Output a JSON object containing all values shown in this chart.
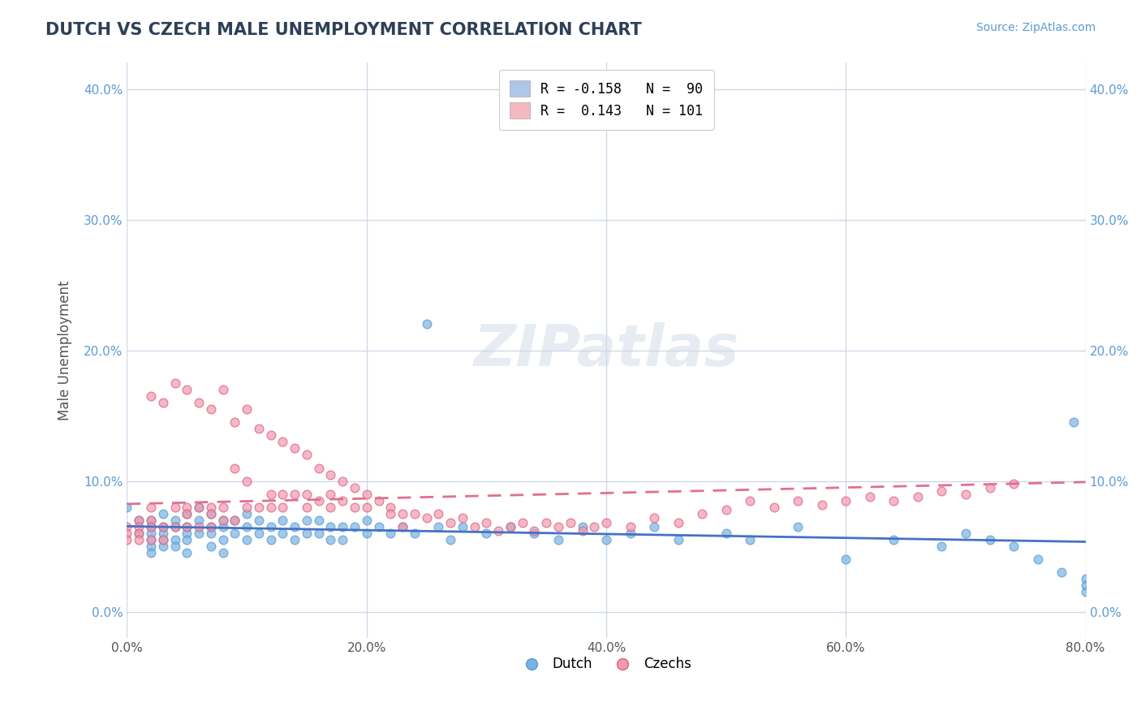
{
  "title": "DUTCH VS CZECH MALE UNEMPLOYMENT CORRELATION CHART",
  "source_text": "Source: ZipAtlas.com",
  "ylabel": "Male Unemployment",
  "xlabel": "",
  "xlim": [
    0.0,
    0.8
  ],
  "ylim": [
    -0.02,
    0.42
  ],
  "yticks": [
    0.0,
    0.1,
    0.2,
    0.3,
    0.4
  ],
  "ytick_labels": [
    "0.0%",
    "10.0%",
    "20.0%",
    "30.0%",
    "40.0%"
  ],
  "xticks": [
    0.0,
    0.2,
    0.4,
    0.6,
    0.8
  ],
  "xtick_labels": [
    "0.0%",
    "20.0%",
    "40.0%",
    "60.0%",
    "80.0%"
  ],
  "legend_entries": [
    {
      "label": "R = -0.158   N =  90",
      "color": "#aec6e8"
    },
    {
      "label": "R =  0.143   N = 101",
      "color": "#f4b8c1"
    }
  ],
  "dutch_color": "#5b9bd5",
  "czech_color": "#e06080",
  "dutch_scatter_color": "#7ab3e0",
  "czech_scatter_color": "#f09ab0",
  "dutch_line_color": "#4472c4",
  "czech_line_color": "#e07090",
  "title_color": "#2E4057",
  "source_color": "#5b9bd5",
  "grid_color": "#d0d8e8",
  "background_color": "#ffffff",
  "watermark": "ZIPatlas",
  "dutch_R": -0.158,
  "dutch_N": 90,
  "czech_R": 0.143,
  "czech_N": 101,
  "dutch_x": [
    0.0,
    0.01,
    0.01,
    0.02,
    0.02,
    0.02,
    0.02,
    0.02,
    0.02,
    0.03,
    0.03,
    0.03,
    0.03,
    0.03,
    0.04,
    0.04,
    0.04,
    0.04,
    0.05,
    0.05,
    0.05,
    0.05,
    0.05,
    0.06,
    0.06,
    0.06,
    0.07,
    0.07,
    0.07,
    0.07,
    0.08,
    0.08,
    0.08,
    0.08,
    0.09,
    0.09,
    0.1,
    0.1,
    0.1,
    0.11,
    0.11,
    0.12,
    0.12,
    0.13,
    0.13,
    0.14,
    0.14,
    0.15,
    0.15,
    0.16,
    0.16,
    0.17,
    0.17,
    0.18,
    0.18,
    0.19,
    0.2,
    0.2,
    0.21,
    0.22,
    0.23,
    0.24,
    0.25,
    0.26,
    0.27,
    0.28,
    0.3,
    0.32,
    0.34,
    0.36,
    0.38,
    0.4,
    0.42,
    0.44,
    0.46,
    0.5,
    0.52,
    0.56,
    0.6,
    0.64,
    0.68,
    0.7,
    0.72,
    0.74,
    0.76,
    0.78,
    0.79,
    0.8,
    0.8,
    0.8
  ],
  "dutch_y": [
    0.08,
    0.07,
    0.06,
    0.07,
    0.065,
    0.06,
    0.055,
    0.05,
    0.045,
    0.075,
    0.065,
    0.06,
    0.055,
    0.05,
    0.07,
    0.065,
    0.055,
    0.05,
    0.075,
    0.065,
    0.06,
    0.055,
    0.045,
    0.08,
    0.07,
    0.06,
    0.075,
    0.065,
    0.06,
    0.05,
    0.07,
    0.065,
    0.055,
    0.045,
    0.07,
    0.06,
    0.075,
    0.065,
    0.055,
    0.07,
    0.06,
    0.065,
    0.055,
    0.07,
    0.06,
    0.065,
    0.055,
    0.07,
    0.06,
    0.07,
    0.06,
    0.065,
    0.055,
    0.065,
    0.055,
    0.065,
    0.07,
    0.06,
    0.065,
    0.06,
    0.065,
    0.06,
    0.22,
    0.065,
    0.055,
    0.065,
    0.06,
    0.065,
    0.06,
    0.055,
    0.065,
    0.055,
    0.06,
    0.065,
    0.055,
    0.06,
    0.055,
    0.065,
    0.04,
    0.055,
    0.05,
    0.06,
    0.055,
    0.05,
    0.04,
    0.03,
    0.145,
    0.025,
    0.02,
    0.015
  ],
  "czech_x": [
    0.0,
    0.0,
    0.0,
    0.01,
    0.01,
    0.01,
    0.01,
    0.02,
    0.02,
    0.02,
    0.02,
    0.02,
    0.03,
    0.03,
    0.03,
    0.04,
    0.04,
    0.04,
    0.05,
    0.05,
    0.05,
    0.05,
    0.06,
    0.06,
    0.06,
    0.07,
    0.07,
    0.07,
    0.07,
    0.08,
    0.08,
    0.08,
    0.09,
    0.09,
    0.09,
    0.1,
    0.1,
    0.1,
    0.11,
    0.11,
    0.12,
    0.12,
    0.12,
    0.13,
    0.13,
    0.13,
    0.14,
    0.14,
    0.15,
    0.15,
    0.15,
    0.16,
    0.16,
    0.17,
    0.17,
    0.17,
    0.18,
    0.18,
    0.19,
    0.19,
    0.2,
    0.2,
    0.21,
    0.22,
    0.22,
    0.23,
    0.23,
    0.24,
    0.25,
    0.26,
    0.27,
    0.28,
    0.29,
    0.3,
    0.31,
    0.32,
    0.33,
    0.34,
    0.35,
    0.36,
    0.37,
    0.38,
    0.39,
    0.4,
    0.42,
    0.44,
    0.46,
    0.48,
    0.5,
    0.52,
    0.54,
    0.56,
    0.58,
    0.6,
    0.62,
    0.64,
    0.66,
    0.68,
    0.7,
    0.72,
    0.74
  ],
  "czech_y": [
    0.065,
    0.06,
    0.055,
    0.07,
    0.065,
    0.06,
    0.055,
    0.08,
    0.165,
    0.07,
    0.065,
    0.055,
    0.16,
    0.065,
    0.055,
    0.175,
    0.08,
    0.065,
    0.17,
    0.08,
    0.075,
    0.065,
    0.16,
    0.08,
    0.065,
    0.155,
    0.08,
    0.075,
    0.065,
    0.17,
    0.08,
    0.07,
    0.145,
    0.11,
    0.07,
    0.155,
    0.1,
    0.08,
    0.14,
    0.08,
    0.135,
    0.09,
    0.08,
    0.13,
    0.09,
    0.08,
    0.125,
    0.09,
    0.12,
    0.09,
    0.08,
    0.11,
    0.085,
    0.105,
    0.09,
    0.08,
    0.1,
    0.085,
    0.095,
    0.08,
    0.09,
    0.08,
    0.085,
    0.08,
    0.075,
    0.075,
    0.065,
    0.075,
    0.072,
    0.075,
    0.068,
    0.072,
    0.065,
    0.068,
    0.062,
    0.065,
    0.068,
    0.062,
    0.068,
    0.065,
    0.068,
    0.062,
    0.065,
    0.068,
    0.065,
    0.072,
    0.068,
    0.075,
    0.078,
    0.085,
    0.08,
    0.085,
    0.082,
    0.085,
    0.088,
    0.085,
    0.088,
    0.092,
    0.09,
    0.095,
    0.098
  ]
}
